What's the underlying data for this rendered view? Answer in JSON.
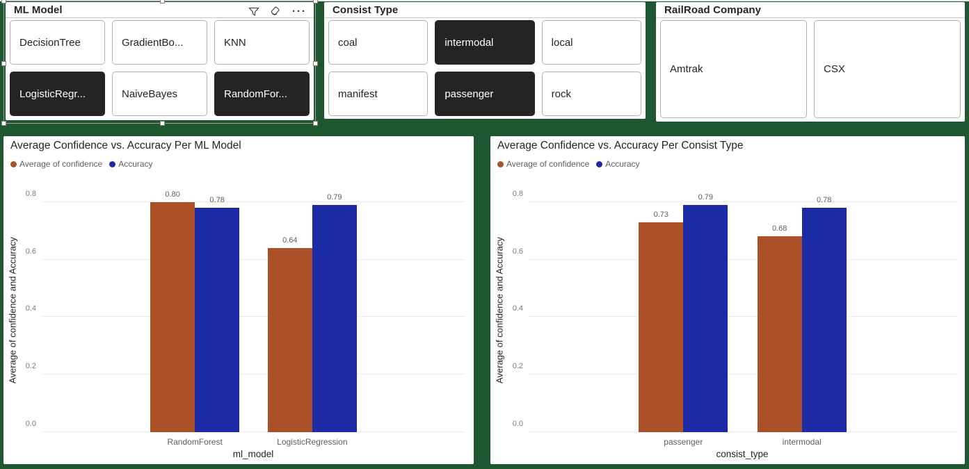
{
  "colors": {
    "background": "#1E5630",
    "card": "#FFFFFF",
    "selected_item_bg": "#252423",
    "item_border": "#B3B2B1",
    "confidence": "#AC5127",
    "accuracy": "#1C2BA5",
    "text_dark": "#252423",
    "text_gray": "#605E5C",
    "gridline": "#D9D9D9"
  },
  "slicers": [
    {
      "title": "ML Model",
      "selected_on_canvas": true,
      "toolbar_icons": [
        "filter-icon",
        "eraser-icon",
        "more-options-icon"
      ],
      "items": [
        {
          "label": "DecisionTree",
          "selected": false
        },
        {
          "label": "GradientBo...",
          "selected": false
        },
        {
          "label": "KNN",
          "selected": false
        },
        {
          "label": "LogisticRegr...",
          "selected": true
        },
        {
          "label": "NaiveBayes",
          "selected": false
        },
        {
          "label": "RandomFor...",
          "selected": true
        }
      ]
    },
    {
      "title": "Consist Type",
      "items": [
        {
          "label": "coal",
          "selected": false
        },
        {
          "label": "intermodal",
          "selected": true
        },
        {
          "label": "local",
          "selected": false
        },
        {
          "label": "manifest",
          "selected": false
        },
        {
          "label": "passenger",
          "selected": true
        },
        {
          "label": "rock",
          "selected": false
        }
      ]
    },
    {
      "title": "RailRoad Company",
      "items": [
        {
          "label": "Amtrak",
          "selected": false
        },
        {
          "label": "CSX",
          "selected": false
        }
      ]
    }
  ],
  "chart_data": [
    {
      "type": "bar",
      "title": "Average Confidence vs. Accuracy Per ML Model",
      "categories": [
        "RandomForest",
        "LogisticRegression"
      ],
      "series": [
        {
          "name": "Average of confidence",
          "color": "#AC5127",
          "values": [
            0.8,
            0.64
          ]
        },
        {
          "name": "Accuracy",
          "color": "#1C2BA5",
          "values": [
            0.78,
            0.79
          ]
        }
      ],
      "xlabel": "ml_model",
      "ylabel": "Average of confidence and Accuracy",
      "ylim": [
        0,
        0.85
      ],
      "yticks": [
        0.0,
        0.2,
        0.4,
        0.6,
        0.8
      ],
      "grid": "dotted",
      "legend_position": "top",
      "data_labels": true
    },
    {
      "type": "bar",
      "title": "Average Confidence vs. Accuracy Per Consist Type",
      "categories": [
        "passenger",
        "intermodal"
      ],
      "series": [
        {
          "name": "Average of confidence",
          "color": "#AC5127",
          "values": [
            0.73,
            0.68
          ]
        },
        {
          "name": "Accuracy",
          "color": "#1C2BA5",
          "values": [
            0.79,
            0.78
          ]
        }
      ],
      "xlabel": "consist_type",
      "ylabel": "Average of confidence and Accuracy",
      "ylim": [
        0,
        0.85
      ],
      "yticks": [
        0.0,
        0.2,
        0.4,
        0.6,
        0.8
      ],
      "grid": "dotted",
      "legend_position": "top",
      "data_labels": true
    }
  ]
}
